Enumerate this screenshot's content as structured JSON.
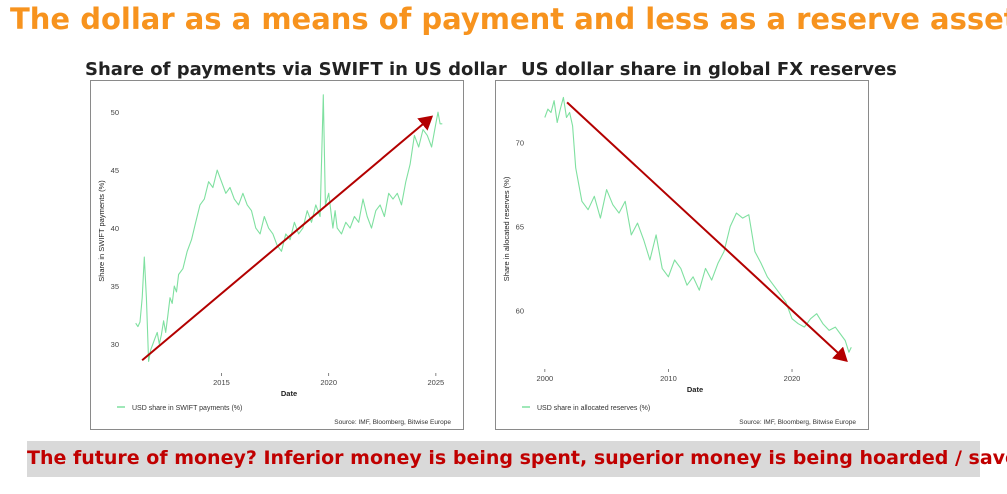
{
  "title": "The dollar as a means of payment and less as a reserve asset",
  "banner": "The future of money? Inferior money is being spent, superior money is being hoarded / saved",
  "colors": {
    "title": "#f7931e",
    "series": "#7fe0a0",
    "arrow": "#b30000",
    "banner_text": "#c00000",
    "banner_bg": "#d9d9d9"
  },
  "chart_data": [
    {
      "type": "line",
      "title": "Share of payments via SWIFT in US dollar",
      "xlabel": "Date",
      "ylabel": "Share in SWIFT payments (%)",
      "xlim": [
        2010.5,
        2025.8
      ],
      "ylim": [
        27.5,
        52
      ],
      "xticks": [
        2015,
        2020,
        2025
      ],
      "yticks": [
        30,
        35,
        40,
        45,
        50
      ],
      "legend": "bottom-left",
      "source": "Source: IMF, Bloomberg, Bitwise Europe",
      "series": [
        {
          "name": "USD share in SWIFT payments (%)",
          "x": [
            2011.0,
            2011.1,
            2011.2,
            2011.3,
            2011.4,
            2011.5,
            2011.6,
            2011.7,
            2011.8,
            2011.9,
            2012.0,
            2012.1,
            2012.2,
            2012.3,
            2012.4,
            2012.5,
            2012.6,
            2012.7,
            2012.8,
            2012.9,
            2013.0,
            2013.2,
            2013.4,
            2013.6,
            2013.8,
            2014.0,
            2014.2,
            2014.4,
            2014.6,
            2014.8,
            2015.0,
            2015.2,
            2015.4,
            2015.6,
            2015.8,
            2016.0,
            2016.2,
            2016.4,
            2016.6,
            2016.8,
            2017.0,
            2017.2,
            2017.4,
            2017.6,
            2017.8,
            2018.0,
            2018.2,
            2018.4,
            2018.6,
            2018.8,
            2019.0,
            2019.2,
            2019.4,
            2019.6,
            2019.75,
            2019.85,
            2020.0,
            2020.2,
            2020.3,
            2020.4,
            2020.6,
            2020.8,
            2021.0,
            2021.2,
            2021.4,
            2021.6,
            2021.8,
            2022.0,
            2022.2,
            2022.4,
            2022.6,
            2022.8,
            2023.0,
            2023.2,
            2023.4,
            2023.6,
            2023.8,
            2024.0,
            2024.2,
            2024.4,
            2024.6,
            2024.8,
            2025.0,
            2025.1,
            2025.2,
            2025.3
          ],
          "y": [
            31.8,
            31.5,
            31.9,
            34.0,
            37.5,
            34.0,
            28.5,
            29.5,
            30.0,
            30.5,
            31.0,
            30.0,
            30.8,
            32.0,
            31.0,
            32.5,
            34.0,
            33.5,
            35.0,
            34.5,
            36.0,
            36.5,
            38.0,
            39.0,
            40.5,
            42.0,
            42.5,
            44.0,
            43.5,
            45.0,
            44.0,
            43.0,
            43.5,
            42.5,
            42.0,
            43.0,
            42.0,
            41.5,
            40.0,
            39.5,
            41.0,
            40.0,
            39.5,
            38.5,
            38.0,
            39.5,
            39.0,
            40.5,
            39.5,
            40.0,
            41.5,
            40.5,
            42.0,
            41.0,
            51.5,
            42.0,
            43.0,
            40.0,
            41.5,
            40.0,
            39.5,
            40.5,
            40.0,
            41.0,
            40.5,
            42.5,
            41.0,
            40.0,
            41.5,
            42.0,
            41.0,
            43.0,
            42.5,
            43.0,
            42.0,
            44.0,
            45.5,
            48.0,
            47.0,
            48.5,
            48.0,
            47.0,
            49.0,
            50.0,
            49.0,
            49.0
          ]
        }
      ],
      "annotation": {
        "type": "arrow",
        "from": [
          2011.3,
          28.6
        ],
        "to": [
          2024.8,
          49.6
        ]
      }
    },
    {
      "type": "line",
      "title": "US dollar share in global FX reserves",
      "xlabel": "Date",
      "ylabel": "Share in allocated reserves (%)",
      "xlim": [
        1998.8,
        2025.5
      ],
      "ylim": [
        56.5,
        73.2
      ],
      "xticks": [
        2000,
        2010,
        2020
      ],
      "yticks": [
        60,
        65,
        70
      ],
      "legend": "bottom-left",
      "source": "Source: IMF, Bloomberg, Bitwise Europe",
      "series": [
        {
          "name": "USD share in allocated reserves (%)",
          "x": [
            2000.0,
            2000.25,
            2000.5,
            2000.75,
            2001.0,
            2001.25,
            2001.5,
            2001.75,
            2002.0,
            2002.25,
            2002.5,
            2002.75,
            2003.0,
            2003.5,
            2004.0,
            2004.5,
            2005.0,
            2005.5,
            2006.0,
            2006.5,
            2007.0,
            2007.5,
            2008.0,
            2008.5,
            2009.0,
            2009.5,
            2010.0,
            2010.5,
            2011.0,
            2011.5,
            2012.0,
            2012.5,
            2013.0,
            2013.5,
            2014.0,
            2014.5,
            2015.0,
            2015.5,
            2016.0,
            2016.5,
            2017.0,
            2017.5,
            2018.0,
            2018.5,
            2019.0,
            2019.5,
            2020.0,
            2020.5,
            2021.0,
            2021.5,
            2022.0,
            2022.5,
            2023.0,
            2023.5,
            2024.0,
            2024.3,
            2024.6,
            2024.8
          ],
          "y": [
            71.5,
            72.0,
            71.8,
            72.5,
            71.2,
            72.0,
            72.7,
            71.5,
            71.8,
            71.0,
            68.5,
            67.5,
            66.5,
            66.0,
            66.8,
            65.5,
            67.2,
            66.3,
            65.8,
            66.5,
            64.5,
            65.2,
            64.2,
            63.0,
            64.5,
            62.5,
            62.0,
            63.0,
            62.5,
            61.5,
            62.0,
            61.2,
            62.5,
            61.8,
            62.8,
            63.5,
            65.0,
            65.8,
            65.5,
            65.7,
            63.5,
            62.8,
            62.0,
            61.5,
            61.0,
            60.5,
            59.5,
            59.2,
            59.0,
            59.5,
            59.8,
            59.2,
            58.8,
            59.0,
            58.5,
            58.2,
            57.5,
            57.8
          ]
        }
      ],
      "annotation": {
        "type": "arrow",
        "from": [
          2001.8,
          72.4
        ],
        "to": [
          2024.4,
          57.0
        ]
      }
    }
  ]
}
